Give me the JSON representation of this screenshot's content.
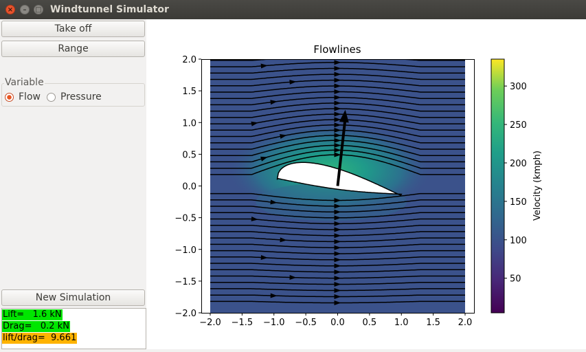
{
  "window": {
    "title": "Windtunnel Simulator"
  },
  "buttons": {
    "take_off": "Take off",
    "range": "Range",
    "new_simulation": "New Simulation"
  },
  "variable_group": {
    "title": "Variable",
    "options": [
      {
        "label": "Flow",
        "selected": true
      },
      {
        "label": "Pressure",
        "selected": false
      }
    ]
  },
  "results": {
    "lift": "Lift=   1.6 kN",
    "drag": "Drag=   0.2 kN",
    "ratio": "lift/drag=  9.661",
    "lift_color": "#00e600",
    "drag_color": "#00e600",
    "ratio_color": "#ffb300"
  },
  "chart_data": {
    "type": "streamplot",
    "title": "Flowlines",
    "xlabel": "",
    "ylabel": "",
    "xlim": [
      -2.0,
      2.0
    ],
    "ylim": [
      -2.0,
      2.0
    ],
    "xticks": [
      "−2.0",
      "−1.5",
      "−1.0",
      "−0.5",
      "0.0",
      "0.5",
      "1.0",
      "1.5",
      "2.0"
    ],
    "yticks": [
      "2.0",
      "1.5",
      "1.0",
      "0.5",
      "0.0",
      "−0.5",
      "−1.0",
      "−1.5",
      "−2.0"
    ],
    "colorbar": {
      "label": "Velocity (kmph)",
      "ticks": [
        "300",
        "250",
        "200",
        "150",
        "100",
        "50"
      ],
      "tick_values": [
        300,
        250,
        200,
        150,
        100,
        50
      ],
      "range": [
        5,
        335
      ],
      "colormap": "viridis"
    },
    "free_stream_velocity": 100,
    "airfoil": {
      "leading_edge": [
        -0.95,
        0.1
      ],
      "trailing_edge": [
        1.0,
        -0.15
      ],
      "max_thickness_x": -0.35,
      "max_upper_y": 0.43
    },
    "force_vector": {
      "from": [
        0.0,
        0.0
      ],
      "to": [
        0.12,
        1.2
      ]
    }
  }
}
